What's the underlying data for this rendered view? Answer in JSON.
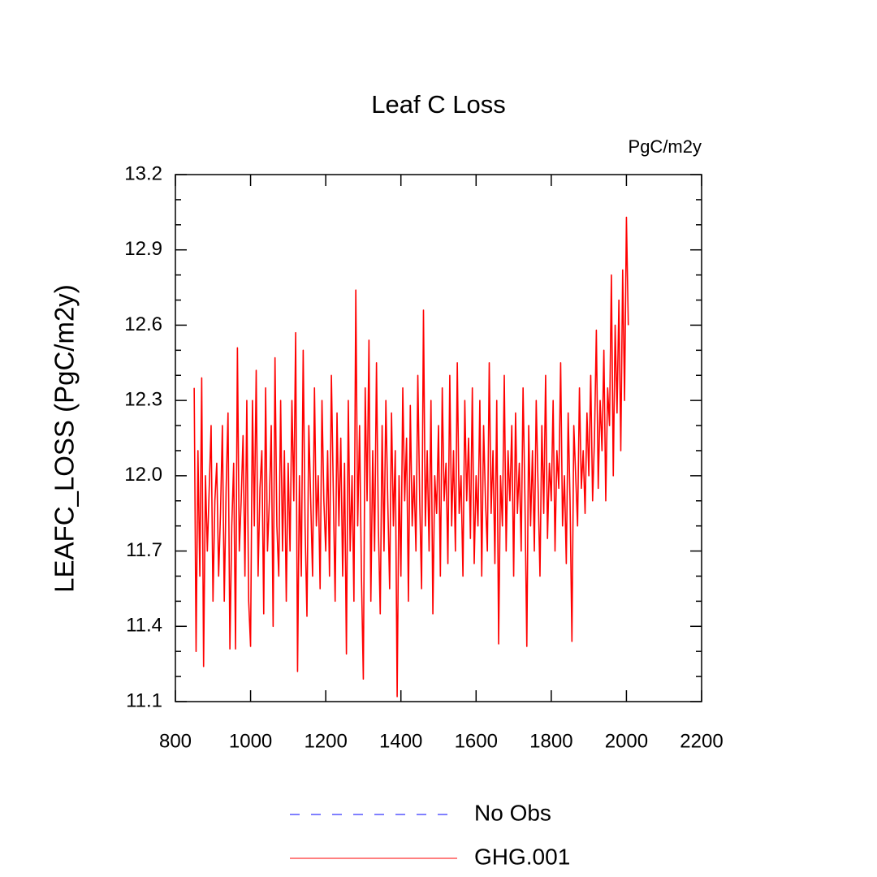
{
  "chart_data": {
    "type": "line",
    "title": "Leaf C Loss",
    "units": "PgC/m2y",
    "ylabel": "LEAFC_LOSS  (PgC/m2y)",
    "xlim": [
      800,
      2200
    ],
    "xticks": [
      800,
      1000,
      1200,
      1400,
      1600,
      1800,
      2000,
      2200
    ],
    "ylim": [
      11.1,
      13.2
    ],
    "yticks": [
      {
        "value": 11.1,
        "label": "11.1"
      },
      {
        "value": 11.4,
        "label": "11.4"
      },
      {
        "value": 11.7,
        "label": "11.7"
      },
      {
        "value": 12.0,
        "label": "12.0"
      },
      {
        "value": 12.3,
        "label": "12.3"
      },
      {
        "value": 12.6,
        "label": "12.6"
      },
      {
        "value": 12.9,
        "label": "12.9"
      },
      {
        "value": 13.2,
        "label": "13.2"
      }
    ],
    "yminor_ticks": [
      11.2,
      11.3,
      11.5,
      11.6,
      11.8,
      11.9,
      12.1,
      12.2,
      12.4,
      12.5,
      12.7,
      12.8,
      13.0,
      13.1
    ],
    "legend": [
      {
        "name": "No Obs",
        "color": "#0000ff",
        "dash": true
      }
    ],
    "x": [
      850,
      855,
      860,
      865,
      870,
      875,
      880,
      885,
      890,
      895,
      900,
      905,
      910,
      915,
      920,
      925,
      930,
      935,
      940,
      945,
      950,
      955,
      960,
      965,
      970,
      975,
      980,
      985,
      990,
      995,
      1000,
      1005,
      1010,
      1015,
      1020,
      1025,
      1030,
      1035,
      1040,
      1045,
      1050,
      1055,
      1060,
      1065,
      1070,
      1075,
      1080,
      1085,
      1090,
      1095,
      1100,
      1105,
      1110,
      1115,
      1120,
      1125,
      1130,
      1135,
      1140,
      1145,
      1150,
      1155,
      1160,
      1165,
      1170,
      1175,
      1180,
      1185,
      1190,
      1195,
      1200,
      1205,
      1210,
      1215,
      1220,
      1225,
      1230,
      1235,
      1240,
      1245,
      1250,
      1255,
      1260,
      1265,
      1270,
      1275,
      1280,
      1285,
      1290,
      1295,
      1300,
      1305,
      1310,
      1315,
      1320,
      1325,
      1330,
      1335,
      1340,
      1345,
      1350,
      1355,
      1360,
      1365,
      1370,
      1375,
      1380,
      1385,
      1390,
      1395,
      1400,
      1405,
      1410,
      1415,
      1420,
      1425,
      1430,
      1435,
      1440,
      1445,
      1450,
      1455,
      1460,
      1465,
      1470,
      1475,
      1480,
      1485,
      1490,
      1495,
      1500,
      1505,
      1510,
      1515,
      1520,
      1525,
      1530,
      1535,
      1540,
      1545,
      1550,
      1555,
      1560,
      1565,
      1570,
      1575,
      1580,
      1585,
      1590,
      1595,
      1600,
      1605,
      1610,
      1615,
      1620,
      1625,
      1630,
      1635,
      1640,
      1645,
      1650,
      1655,
      1660,
      1665,
      1670,
      1675,
      1680,
      1685,
      1690,
      1695,
      1700,
      1705,
      1710,
      1715,
      1720,
      1725,
      1730,
      1735,
      1740,
      1745,
      1750,
      1755,
      1760,
      1765,
      1770,
      1775,
      1780,
      1785,
      1790,
      1795,
      1800,
      1805,
      1810,
      1815,
      1820,
      1825,
      1830,
      1835,
      1840,
      1845,
      1850,
      1855,
      1860,
      1865,
      1870,
      1875,
      1880,
      1885,
      1890,
      1895,
      1900,
      1905,
      1910,
      1915,
      1920,
      1925,
      1930,
      1935,
      1940,
      1945,
      1950,
      1955,
      1960,
      1965,
      1970,
      1975,
      1980,
      1985,
      1990,
      1995,
      2000,
      2005
    ],
    "series": [
      {
        "name": "GHG.001",
        "color": "#ff0000",
        "values": [
          12.35,
          11.3,
          12.1,
          11.6,
          12.39,
          11.24,
          12.0,
          11.7,
          11.95,
          12.2,
          11.5,
          11.9,
          12.05,
          11.6,
          11.85,
          12.2,
          11.5,
          11.95,
          12.25,
          11.31,
          11.8,
          12.05,
          11.31,
          12.51,
          11.7,
          11.9,
          12.16,
          11.6,
          12.3,
          11.5,
          11.32,
          12.3,
          11.8,
          12.42,
          11.6,
          11.95,
          12.1,
          11.45,
          12.35,
          11.7,
          11.9,
          12.2,
          11.4,
          12.47,
          11.8,
          11.6,
          12.3,
          11.7,
          12.1,
          11.5,
          12.05,
          11.7,
          12.3,
          11.9,
          12.57,
          11.22,
          12.0,
          11.6,
          12.5,
          11.8,
          11.44,
          12.2,
          11.9,
          11.6,
          12.35,
          11.8,
          12.0,
          11.55,
          12.3,
          11.9,
          11.7,
          12.1,
          11.6,
          12.4,
          11.95,
          11.5,
          12.25,
          11.8,
          12.15,
          11.6,
          12.05,
          11.29,
          12.3,
          11.7,
          12.0,
          11.5,
          12.74,
          11.8,
          12.2,
          11.6,
          11.19,
          12.35,
          11.9,
          12.54,
          11.5,
          12.1,
          11.7,
          12.45,
          11.8,
          11.45,
          12.2,
          11.7,
          12.3,
          11.9,
          11.55,
          12.25,
          11.8,
          12.1,
          11.12,
          12.0,
          11.6,
          12.35,
          11.9,
          12.15,
          11.5,
          12.28,
          11.8,
          12.0,
          11.7,
          12.4,
          11.9,
          11.55,
          12.66,
          11.8,
          12.1,
          11.7,
          12.3,
          11.45,
          12.0,
          11.85,
          12.2,
          11.6,
          12.35,
          11.9,
          12.05,
          11.65,
          12.4,
          11.8,
          12.1,
          11.7,
          12.45,
          11.85,
          12.0,
          11.6,
          12.3,
          11.9,
          12.15,
          11.75,
          12.35,
          11.65,
          12.0,
          11.8,
          12.3,
          11.6,
          12.2,
          11.9,
          11.7,
          12.45,
          11.85,
          12.1,
          11.65,
          12.3,
          11.33,
          12.0,
          11.8,
          12.4,
          11.7,
          12.1,
          11.9,
          12.2,
          11.6,
          12.25,
          11.85,
          12.05,
          11.7,
          12.35,
          11.9,
          11.32,
          12.2,
          11.8,
          12.1,
          11.7,
          12.3,
          11.95,
          11.6,
          12.2,
          11.85,
          12.4,
          11.75,
          12.05,
          11.9,
          12.3,
          11.7,
          12.1,
          11.95,
          12.45,
          11.8,
          12.0,
          11.65,
          12.25,
          11.9,
          11.34,
          12.2,
          12.0,
          11.8,
          12.35,
          11.95,
          12.1,
          11.85,
          12.25,
          12.0,
          12.4,
          11.9,
          12.15,
          12.58,
          11.95,
          12.3,
          12.1,
          12.5,
          11.9,
          12.35,
          12.2,
          12.8,
          12.0,
          12.6,
          12.25,
          12.7,
          12.1,
          12.82,
          12.3,
          13.03,
          12.6
        ]
      }
    ]
  }
}
